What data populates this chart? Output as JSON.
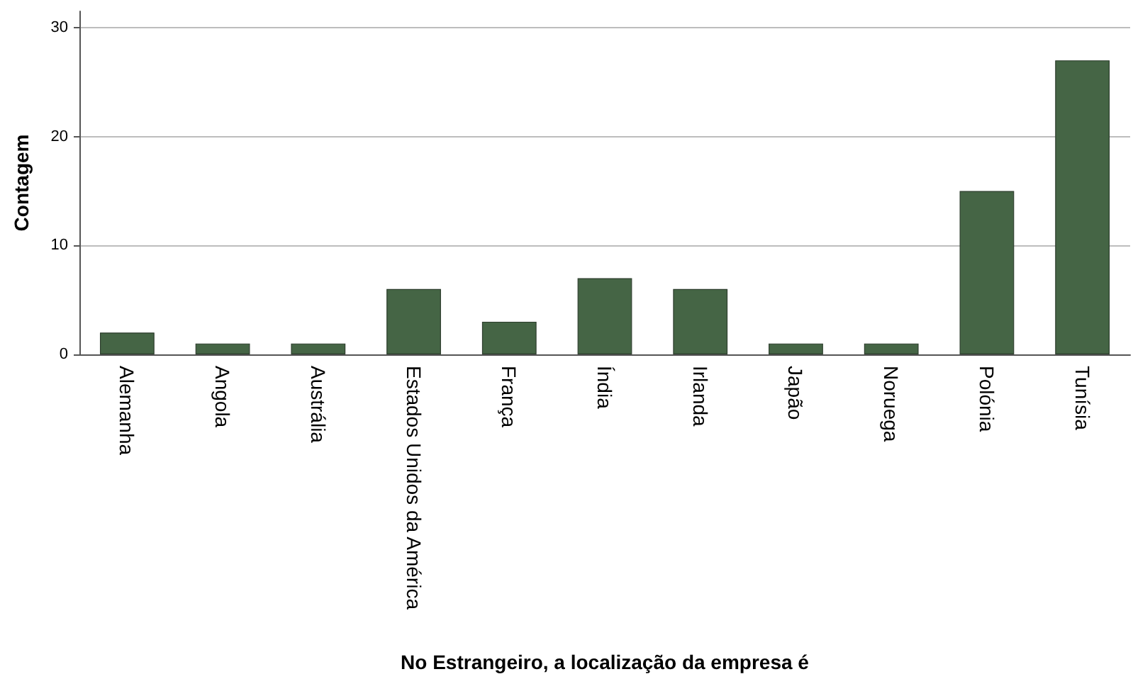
{
  "chart_data": {
    "type": "bar",
    "xlabel": "No Estrangeiro, a localização da empresa é",
    "ylabel": "Contagem",
    "categories": [
      "Alemanha",
      "Angola",
      "Austrália",
      "Estados Unidos da América",
      "França",
      "Índia",
      "Irlanda",
      "Japão",
      "Noruega",
      "Polónia",
      "Tunísia"
    ],
    "values": [
      2,
      1,
      1,
      6,
      3,
      7,
      6,
      1,
      1,
      15,
      27
    ],
    "color": "#456545",
    "ylim": [
      0,
      31.5
    ],
    "yticks": [
      0,
      10,
      20,
      30
    ],
    "grid": "y"
  }
}
